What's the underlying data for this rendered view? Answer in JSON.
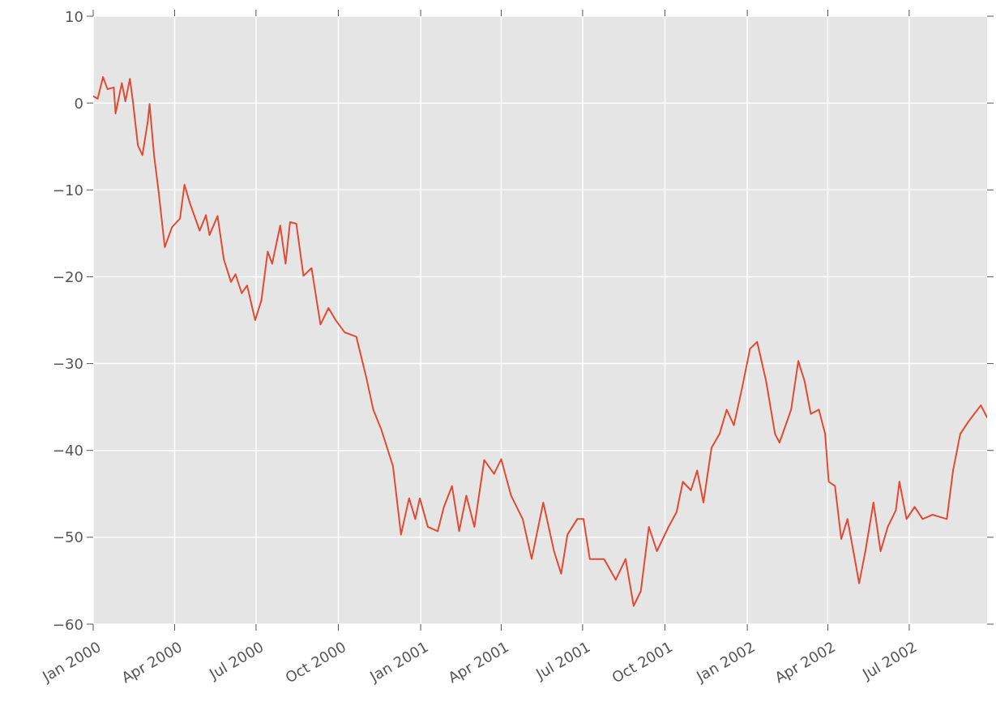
{
  "chart_data": {
    "type": "line",
    "x": [
      "2000-01-01",
      "2000-01-06",
      "2000-01-12",
      "2000-01-17",
      "2000-01-24",
      "2000-01-26",
      "2000-02-02",
      "2000-02-06",
      "2000-02-11",
      "2000-02-14",
      "2000-02-20",
      "2000-02-25",
      "2000-03-02",
      "2000-03-04",
      "2000-03-09",
      "2000-03-14",
      "2000-03-21",
      "2000-03-29",
      "2000-04-07",
      "2000-04-12",
      "2000-04-18",
      "2000-04-29",
      "2000-05-06",
      "2000-05-10",
      "2000-05-19",
      "2000-05-26",
      "2000-06-03",
      "2000-06-08",
      "2000-06-15",
      "2000-06-21",
      "2000-06-30",
      "2000-07-07",
      "2000-07-14",
      "2000-07-19",
      "2000-07-28",
      "2000-08-03",
      "2000-08-08",
      "2000-08-15",
      "2000-08-23",
      "2000-09-01",
      "2000-09-11",
      "2000-09-20",
      "2000-09-28",
      "2000-10-08",
      "2000-10-21",
      "2000-11-01",
      "2000-11-09",
      "2000-11-18",
      "2000-12-01",
      "2000-12-10",
      "2000-12-19",
      "2000-12-26",
      "2000-12-31",
      "2001-01-09",
      "2001-01-20",
      "2001-01-27",
      "2001-02-05",
      "2001-02-13",
      "2001-02-21",
      "2001-03-02",
      "2001-03-13",
      "2001-03-24",
      "2001-04-01",
      "2001-04-12",
      "2001-04-25",
      "2001-05-05",
      "2001-05-18",
      "2001-05-30",
      "2001-06-07",
      "2001-06-14",
      "2001-06-25",
      "2001-07-02",
      "2001-07-09",
      "2001-07-25",
      "2001-08-07",
      "2001-08-18",
      "2001-08-27",
      "2001-09-04",
      "2001-09-13",
      "2001-09-22",
      "2001-10-05",
      "2001-10-14",
      "2001-10-21",
      "2001-10-30",
      "2001-11-06",
      "2001-11-13",
      "2001-11-22",
      "2001-12-01",
      "2001-12-09",
      "2001-12-17",
      "2001-12-26",
      "2002-01-04",
      "2002-01-12",
      "2002-01-22",
      "2002-02-01",
      "2002-02-06",
      "2002-02-19",
      "2002-02-27",
      "2002-03-06",
      "2002-03-13",
      "2002-03-22",
      "2002-03-29",
      "2002-04-02",
      "2002-04-09",
      "2002-04-16",
      "2002-04-23",
      "2002-05-02",
      "2002-05-06",
      "2002-05-13",
      "2002-05-22",
      "2002-05-30",
      "2002-06-07",
      "2002-06-16",
      "2002-06-20",
      "2002-06-28",
      "2002-07-07",
      "2002-07-16",
      "2002-07-27",
      "2002-08-12",
      "2002-08-19",
      "2002-08-27",
      "2002-09-05",
      "2002-09-19",
      "2002-09-26"
    ],
    "series": [
      {
        "color": "#e24a33",
        "values": [
          0.8,
          0.5,
          3.0,
          1.6,
          1.8,
          -1.2,
          2.3,
          0.2,
          2.8,
          0.5,
          -4.9,
          -6.0,
          -2.1,
          -0.1,
          -6.0,
          -10.1,
          -16.6,
          -14.3,
          -13.3,
          -9.4,
          -11.5,
          -14.7,
          -12.9,
          -15.2,
          -13.0,
          -18.0,
          -20.6,
          -19.7,
          -21.9,
          -21.0,
          -25.0,
          -22.7,
          -17.1,
          -18.5,
          -14.1,
          -18.5,
          -13.7,
          -13.9,
          -19.9,
          -19.0,
          -25.5,
          -23.6,
          -25.0,
          -26.4,
          -26.9,
          -31.5,
          -35.3,
          -37.6,
          -41.8,
          -49.7,
          -45.5,
          -47.9,
          -45.5,
          -48.8,
          -49.3,
          -46.5,
          -44.1,
          -49.3,
          -45.2,
          -48.8,
          -41.1,
          -42.7,
          -41.0,
          -45.2,
          -47.9,
          -52.5,
          -46.0,
          -51.6,
          -54.2,
          -49.7,
          -47.9,
          -47.9,
          -52.5,
          -52.5,
          -54.9,
          -52.5,
          -57.9,
          -56.2,
          -48.8,
          -51.6,
          -48.8,
          -47.1,
          -43.6,
          -44.6,
          -42.3,
          -46.0,
          -39.7,
          -38.1,
          -35.3,
          -37.1,
          -32.9,
          -28.3,
          -27.5,
          -32.0,
          -38.1,
          -39.1,
          -35.3,
          -29.7,
          -32.0,
          -35.8,
          -35.3,
          -38.1,
          -43.6,
          -44.1,
          -50.2,
          -47.9,
          -53.0,
          -55.3,
          -51.6,
          -46.0,
          -51.6,
          -48.8,
          -46.9,
          -43.6,
          -47.9,
          -46.5,
          -47.9,
          -47.4,
          -47.9,
          -42.3,
          -38.1,
          -36.7,
          -34.8,
          -36.2
        ]
      }
    ],
    "xlim": [
      "2000-01-01",
      "2002-09-26"
    ],
    "xticks": [
      {
        "value": "2000-01-01",
        "label": "Jan 2000"
      },
      {
        "value": "2000-04-01",
        "label": "Apr 2000"
      },
      {
        "value": "2000-07-01",
        "label": "Jul 2000"
      },
      {
        "value": "2000-10-01",
        "label": "Oct 2000"
      },
      {
        "value": "2001-01-01",
        "label": "Jan 2001"
      },
      {
        "value": "2001-04-01",
        "label": "Apr 2001"
      },
      {
        "value": "2001-07-01",
        "label": "Jul 2001"
      },
      {
        "value": "2001-10-01",
        "label": "Oct 2001"
      },
      {
        "value": "2002-01-01",
        "label": "Jan 2002"
      },
      {
        "value": "2002-04-01",
        "label": "Apr 2002"
      },
      {
        "value": "2002-07-01",
        "label": "Jul 2002"
      }
    ],
    "ylim": [
      -60,
      10
    ],
    "yticks": [
      -60,
      -50,
      -40,
      -30,
      -20,
      -10,
      0,
      10
    ],
    "grid": true
  }
}
